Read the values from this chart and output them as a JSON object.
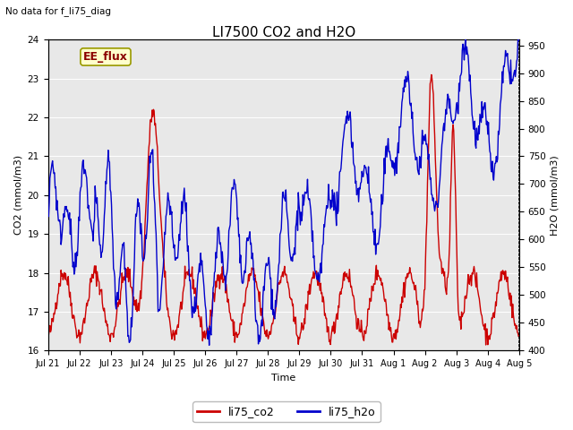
{
  "title": "LI7500 CO2 and H2O",
  "top_left_text": "No data for f_li75_diag",
  "annotation_text": "EE_flux",
  "xlabel": "Time",
  "ylabel_left": "CO2 (mmol/m3)",
  "ylabel_right": "H2O (mmol/m3)",
  "ylim_left": [
    16.0,
    24.0
  ],
  "ylim_right": [
    400,
    960
  ],
  "yticks_left": [
    16.0,
    17.0,
    18.0,
    19.0,
    20.0,
    21.0,
    22.0,
    23.0,
    24.0
  ],
  "yticks_right": [
    400,
    450,
    500,
    550,
    600,
    650,
    700,
    750,
    800,
    850,
    900,
    950
  ],
  "xtick_labels": [
    "Jul 21",
    "Jul 22",
    "Jul 23",
    "Jul 24",
    "Jul 25",
    "Jul 26",
    "Jul 27",
    "Jul 28",
    "Jul 29",
    "Jul 30",
    "Jul 31",
    "Aug 1",
    "Aug 2",
    "Aug 3",
    "Aug 4",
    "Aug 5"
  ],
  "co2_color": "#cc0000",
  "h2o_color": "#0000cc",
  "annotation_bg": "#ffffcc",
  "annotation_border": "#999900",
  "background_color": "#e8e8e8",
  "legend_co2": "li75_co2",
  "legend_h2o": "li75_h2o",
  "title_fontsize": 11,
  "label_fontsize": 8,
  "tick_fontsize": 7.5,
  "linewidth": 1.0,
  "n_days": 15,
  "pts_per_day": 48
}
